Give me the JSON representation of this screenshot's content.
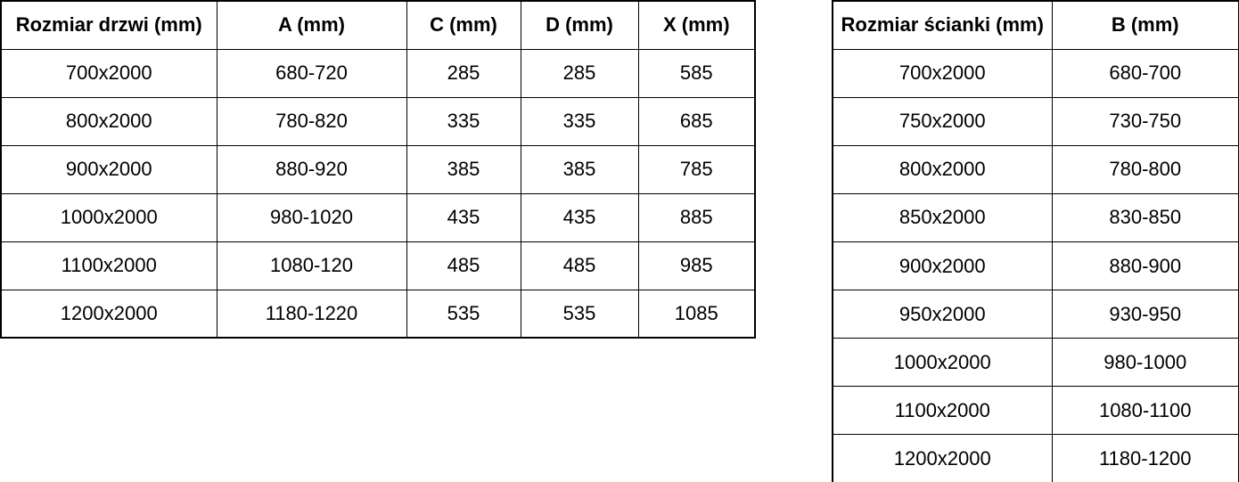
{
  "door_table": {
    "headers": [
      "Rozmiar drzwi (mm)",
      "A (mm)",
      "C (mm)",
      "D (mm)",
      "X (mm)"
    ],
    "rows": [
      [
        "700x2000",
        "680-720",
        "285",
        "285",
        "585"
      ],
      [
        "800x2000",
        "780-820",
        "335",
        "335",
        "685"
      ],
      [
        "900x2000",
        "880-920",
        "385",
        "385",
        "785"
      ],
      [
        "1000x2000",
        "980-1020",
        "435",
        "435",
        "885"
      ],
      [
        "1100x2000",
        "1080-120",
        "485",
        "485",
        "985"
      ],
      [
        "1200x2000",
        "1180-1220",
        "535",
        "535",
        "1085"
      ]
    ]
  },
  "wall_table": {
    "headers": [
      "Rozmiar ścianki (mm)",
      "B (mm)"
    ],
    "rows": [
      [
        "700x2000",
        "680-700"
      ],
      [
        "750x2000",
        "730-750"
      ],
      [
        "800x2000",
        "780-800"
      ],
      [
        "850x2000",
        "830-850"
      ],
      [
        "900x2000",
        "880-900"
      ],
      [
        "950x2000",
        "930-950"
      ],
      [
        "1000x2000",
        "980-1000"
      ],
      [
        "1100x2000",
        "1080-1100"
      ],
      [
        "1200x2000",
        "1180-1200"
      ]
    ]
  },
  "colors": {
    "border": "#000000",
    "text": "#000000",
    "background": "#ffffff"
  }
}
